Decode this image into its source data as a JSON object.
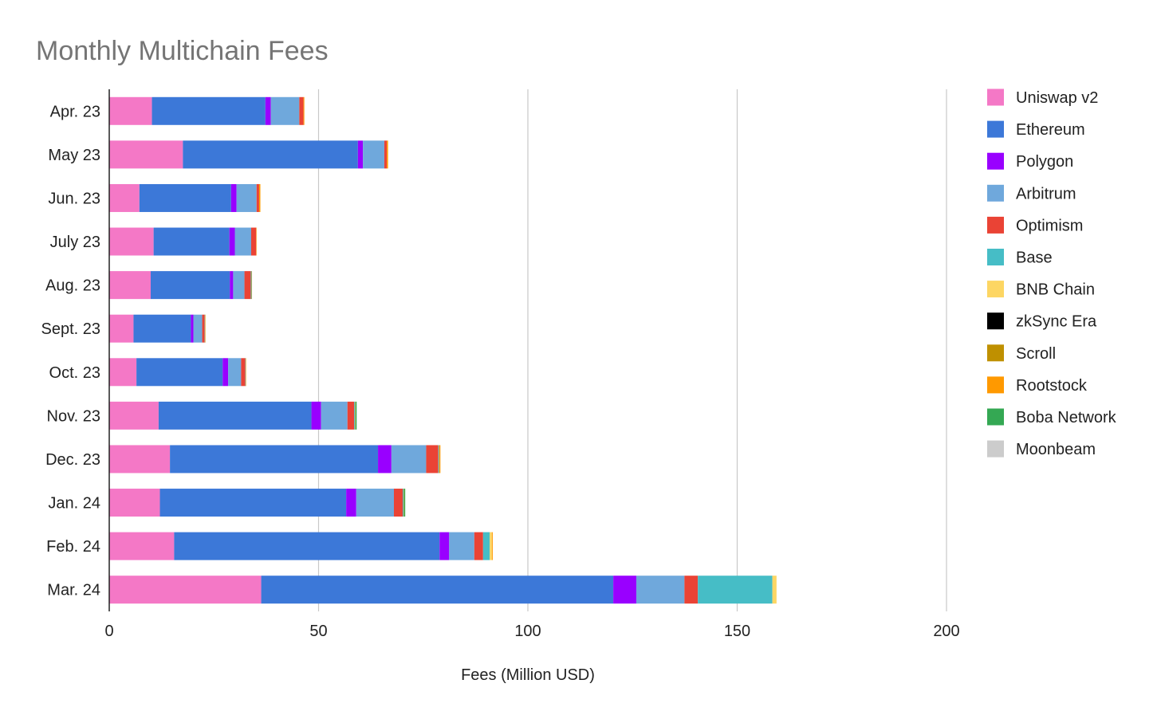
{
  "chart_data": {
    "type": "bar",
    "orientation": "horizontal",
    "stacked": true,
    "title": "Monthly Multichain Fees",
    "xlabel": "Fees (Million USD)",
    "ylabel": "",
    "xlim": [
      0,
      200
    ],
    "xticks": [
      0,
      50,
      100,
      150,
      200
    ],
    "grid": true,
    "legend_position": "right",
    "categories": [
      "Apr. 23",
      "May 23",
      "Jun. 23",
      "July 23",
      "Aug. 23",
      "Sept. 23",
      "Oct. 23",
      "Nov. 23",
      "Dec. 23",
      "Jan. 24",
      "Feb. 24",
      "Mar. 24"
    ],
    "series": [
      {
        "name": "Uniswap v2",
        "color": "#f478c6",
        "values": [
          10.2,
          17.6,
          7.2,
          10.6,
          9.9,
          5.8,
          6.5,
          11.8,
          14.5,
          12.1,
          15.5,
          36.3
        ]
      },
      {
        "name": "Ethereum",
        "color": "#3c78d8",
        "values": [
          27.1,
          41.8,
          21.9,
          18.1,
          18.9,
          13.7,
          20.6,
          36.5,
          49.7,
          44.5,
          63.4,
          84.1
        ]
      },
      {
        "name": "Polygon",
        "color": "#9900ff",
        "values": [
          1.3,
          1.2,
          1.3,
          1.3,
          0.8,
          0.6,
          1.3,
          2.3,
          3.2,
          2.4,
          2.3,
          5.5
        ]
      },
      {
        "name": "Arbitrum",
        "color": "#6fa8dc",
        "values": [
          6.8,
          5.1,
          4.8,
          3.9,
          2.7,
          2.1,
          3.1,
          6.3,
          8.3,
          9.0,
          6.0,
          11.5
        ]
      },
      {
        "name": "Optimism",
        "color": "#ea4335",
        "values": [
          1.0,
          0.6,
          0.6,
          1.2,
          1.5,
          0.6,
          1.0,
          1.6,
          2.9,
          2.1,
          2.1,
          3.2
        ]
      },
      {
        "name": "Base",
        "color": "#46bdc6",
        "values": [
          0,
          0,
          0,
          0,
          0.2,
          0.1,
          0.1,
          0.2,
          0.2,
          0.2,
          1.6,
          17.8
        ]
      },
      {
        "name": "BNB Chain",
        "color": "#fdd663",
        "values": [
          0,
          0,
          0,
          0,
          0,
          0,
          0,
          0,
          0,
          0,
          0.5,
          1.0
        ]
      },
      {
        "name": "zkSync Era",
        "color": "#000000",
        "values": [
          0,
          0,
          0,
          0,
          0,
          0,
          0,
          0,
          0,
          0,
          0,
          0
        ]
      },
      {
        "name": "Scroll",
        "color": "#bf9000",
        "values": [
          0,
          0,
          0,
          0,
          0,
          0,
          0,
          0,
          0,
          0,
          0,
          0
        ]
      },
      {
        "name": "Rootstock",
        "color": "#ff9900",
        "values": [
          0.2,
          0.3,
          0.3,
          0.1,
          0.1,
          0.1,
          0.1,
          0.1,
          0.3,
          0.1,
          0.2,
          0
        ]
      },
      {
        "name": "Boba Network",
        "color": "#34a853",
        "values": [
          0,
          0,
          0,
          0,
          0,
          0,
          0,
          0.3,
          0,
          0.3,
          0,
          0
        ]
      },
      {
        "name": "Moonbeam",
        "color": "#cccccc",
        "values": [
          0,
          0,
          0,
          0,
          0,
          0,
          0,
          0,
          0,
          0,
          0,
          0
        ]
      }
    ]
  }
}
